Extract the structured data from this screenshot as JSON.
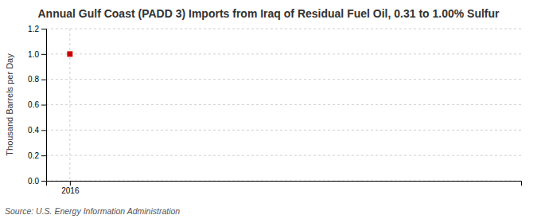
{
  "chart_data": {
    "type": "scatter",
    "title": "Annual Gulf Coast (PADD 3) Imports from Iraq of Residual Fuel Oil, 0.31 to 1.00% Sulfur",
    "ylabel": "Thousand Barrels per Day",
    "annotations": [
      "Source: U.S. Energy Information Administration"
    ],
    "x": [
      2016
    ],
    "values": [
      1.0
    ],
    "color": "#cc0000",
    "marker": "square",
    "xlim": [
      2015.5,
      2025.5
    ],
    "xticks": [
      2016
    ],
    "ylim": [
      0.0,
      1.2
    ],
    "yticks": [
      {
        "value": 0.0,
        "label": "0.0"
      },
      0.2,
      0.4,
      0.6,
      0.8,
      {
        "value": 1.0,
        "label": "1.0"
      },
      1.2
    ],
    "grid": true
  }
}
